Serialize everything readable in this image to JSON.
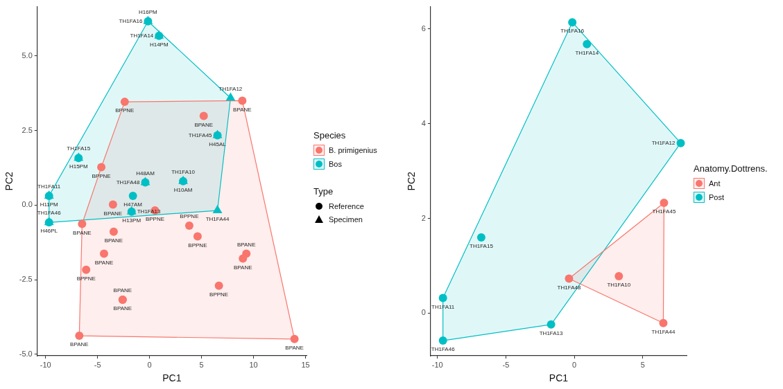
{
  "chart_data": [
    {
      "type": "scatter",
      "xlabel": "PC1",
      "ylabel": "PC2",
      "legend_title": "Species",
      "legend": "right",
      "grid": false,
      "xlim": [
        -10.8,
        15.1
      ],
      "ylim": [
        -5.05,
        6.65
      ],
      "xticks": [
        -10,
        -5,
        0,
        5,
        10,
        15
      ],
      "yticks": [
        {
          "value": -5,
          "label": "-5.0"
        },
        {
          "value": -2.5,
          "label": "-2.5"
        },
        {
          "value": 0,
          "label": "0.0"
        },
        {
          "value": 2.5,
          "label": "2.5"
        },
        {
          "value": 5,
          "label": "5.0"
        }
      ],
      "annotations": [
        "Type",
        "Reference",
        "Specimen"
      ],
      "series": [
        {
          "name": "B. primigenius",
          "color": "#f8766d",
          "marker": "circle",
          "x": [
            -2.39,
            8.92,
            5.21,
            -4.64,
            -3.52,
            0.52,
            -6.49,
            -3.45,
            3.82,
            4.62,
            -4.38,
            9.31,
            8.98,
            -6.1,
            6.67,
            -2.59,
            -2.59,
            -6.76,
            13.94
          ],
          "values": [
            3.46,
            3.5,
            2.99,
            1.27,
            0.02,
            -0.18,
            -0.63,
            -0.89,
            -0.69,
            -1.05,
            -1.63,
            -1.63,
            -1.79,
            -2.17,
            -2.7,
            -3.17,
            -3.17,
            -4.38,
            -4.49
          ],
          "value_labels": [
            "BPPNE",
            "BPANE",
            "BPANE",
            "BPPNE",
            "BPANE",
            "BPPNE",
            "BPANE",
            "BPANE",
            "BPPNE",
            "BPPNE",
            "BPANE",
            "BPANE",
            "BPANE",
            "BPPNE",
            "BPPNE",
            "BPANE",
            "BPANE",
            "BPANE",
            "BPANE"
          ]
        },
        {
          "name": "Bos",
          "color": "#00bfc4",
          "marker": "circle",
          "x": [
            -0.15,
            0.91,
            -6.83,
            -9.67,
            -9.67,
            -0.41,
            -1.6,
            -1.73,
            3.23,
            6.53
          ],
          "values": [
            6.16,
            5.67,
            1.58,
            0.31,
            -0.58,
            0.76,
            0.31,
            -0.22,
            0.8,
            2.34
          ],
          "value_labels": [
            "H16PM",
            "H14PM",
            "H15PM",
            "H11PM",
            "H46PL",
            "H48AM",
            "H47AM",
            "H13PM",
            "H10AM",
            "H45AL"
          ]
        },
        {
          "color": "#00bfc4",
          "marker": "triangle",
          "x": [
            -0.15,
            0.91,
            7.79,
            6.53,
            -6.83,
            -9.67,
            -9.67,
            -0.41,
            -1.73,
            3.23,
            6.53
          ],
          "values": [
            6.16,
            5.67,
            3.59,
            2.34,
            1.58,
            0.31,
            -0.58,
            0.76,
            -0.22,
            0.8,
            -0.18
          ],
          "value_labels": [
            "TH1FA16",
            "TH1FA14",
            "TH1FA12",
            "TH1FA45",
            "TH1FA15",
            "TH1FA11",
            "TH1FA46",
            "TH1FA48",
            "TH1FA13",
            "TH1FA10",
            "TH1FA44"
          ]
        },
        {
          "type": "area",
          "color": "#f8766d",
          "x": [
            -2.39,
            8.92,
            13.94,
            -6.76,
            -6.49,
            -4.64,
            -2.39
          ],
          "values": [
            3.46,
            3.5,
            -4.49,
            -4.38,
            -0.63,
            1.27,
            3.46
          ]
        },
        {
          "type": "area",
          "color": "#00bfc4",
          "x": [
            -0.15,
            7.79,
            6.53,
            -9.67,
            -9.67,
            -0.15
          ],
          "values": [
            6.16,
            3.59,
            -0.18,
            -0.58,
            0.31,
            6.16
          ]
        }
      ]
    },
    {
      "type": "scatter",
      "xlabel": "PC1",
      "ylabel": "PC2",
      "legend_title": "Anatomy.Dottrens.",
      "legend": "right",
      "grid": false,
      "xlim": [
        -10.5,
        8.2
      ],
      "ylim": [
        -0.9,
        6.47
      ],
      "xticks": [
        -10,
        -5,
        0,
        5
      ],
      "yticks": [
        0,
        2,
        4,
        6
      ],
      "series": [
        {
          "name": "Ant",
          "color": "#f8766d",
          "marker": "circle",
          "x": [
            -0.39,
            3.25,
            6.55,
            6.5
          ],
          "values": [
            0.73,
            0.78,
            2.33,
            -0.21
          ],
          "value_labels": [
            "TH1FA48",
            "TH1FA10",
            "TH1FA45",
            "TH1FA44"
          ]
        },
        {
          "name": "Post",
          "color": "#00bfc4",
          "marker": "circle",
          "x": [
            -0.15,
            0.92,
            7.77,
            -6.8,
            -9.6,
            -9.6,
            -1.7
          ],
          "values": [
            6.14,
            5.68,
            3.59,
            1.6,
            0.32,
            -0.58,
            -0.24
          ],
          "value_labels": [
            "TH1FA16",
            "TH1FA14",
            "TH1FA12",
            "TH1FA15",
            "TH1FA11",
            "TH1FA46",
            "TH1FA13"
          ]
        },
        {
          "type": "area",
          "color": "#f8766d",
          "x": [
            -0.39,
            6.55,
            6.5,
            -0.39
          ],
          "values": [
            0.73,
            2.33,
            -0.21,
            0.73
          ]
        },
        {
          "type": "area",
          "color": "#00bfc4",
          "x": [
            -0.15,
            7.77,
            -1.7,
            -9.6,
            -9.6,
            -0.15
          ],
          "values": [
            6.14,
            3.59,
            -0.24,
            -0.58,
            0.32,
            6.14
          ]
        }
      ]
    }
  ]
}
